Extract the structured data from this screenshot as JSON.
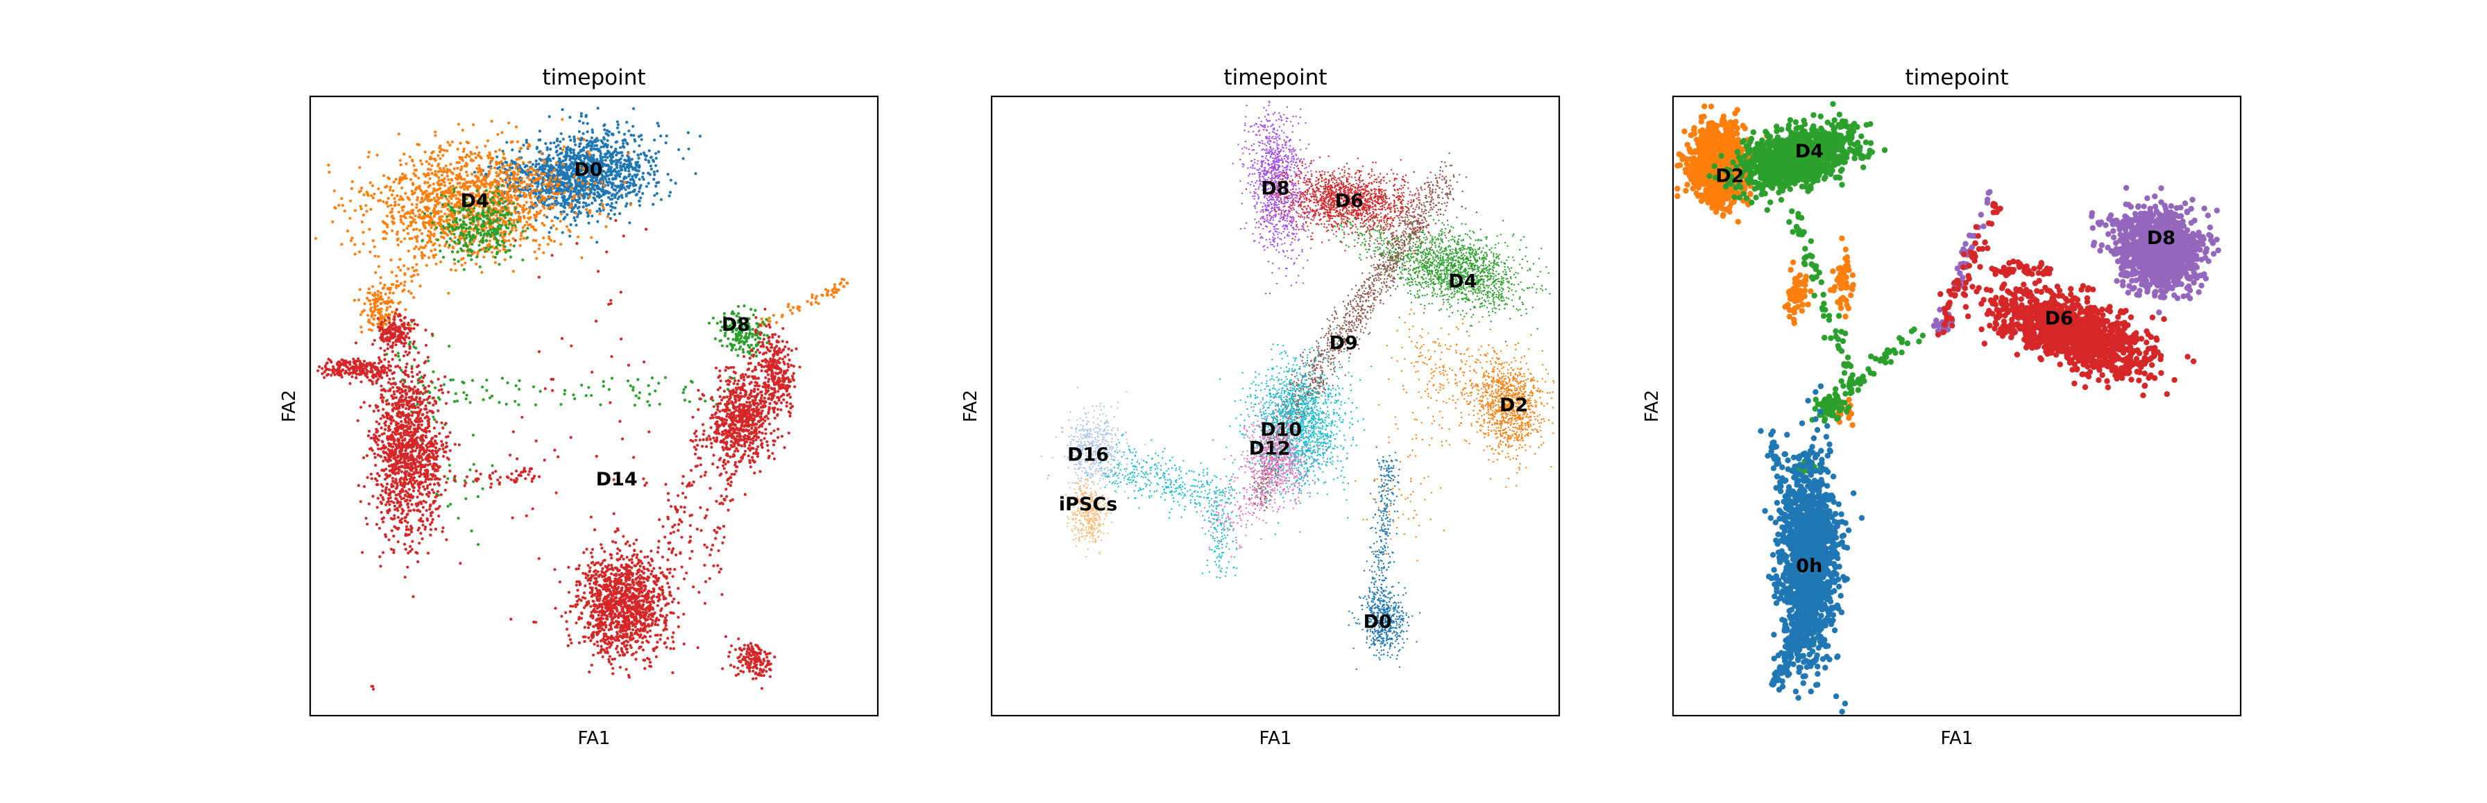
{
  "chart_data": [
    {
      "type": "scatter",
      "title": "timepoint",
      "xlabel": "FA1",
      "ylabel": "FA2",
      "xlim": [
        0,
        100
      ],
      "ylim": [
        0,
        100
      ],
      "legend": "on-data",
      "clusters": [
        {
          "name": "D0",
          "color": "#1f77b4",
          "label_at": [
            49,
            88
          ]
        },
        {
          "name": "D4",
          "color": "#ff7f0e",
          "label_at": [
            29,
            83
          ]
        },
        {
          "name": "D8",
          "color": "#2ca02c",
          "label_at": [
            75,
            63
          ]
        },
        {
          "name": "D14",
          "color": "#d62728",
          "label_at": [
            54,
            38
          ]
        }
      ]
    },
    {
      "type": "scatter",
      "title": "timepoint",
      "xlabel": "FA1",
      "ylabel": "FA2",
      "xlim": [
        0,
        100
      ],
      "ylim": [
        0,
        100
      ],
      "legend": "on-data",
      "clusters": [
        {
          "name": "D8",
          "color": "#a04cf0",
          "label_at": [
            50,
            85
          ]
        },
        {
          "name": "D6",
          "color": "#d62728",
          "label_at": [
            63,
            83
          ]
        },
        {
          "name": "D4",
          "color": "#2ca02c",
          "label_at": [
            83,
            70
          ]
        },
        {
          "name": "D9",
          "color": "#8c564b",
          "label_at": [
            62,
            60
          ]
        },
        {
          "name": "D2",
          "color": "#ff7f0e",
          "label_at": [
            92,
            50
          ]
        },
        {
          "name": "D0",
          "color": "#1f77b4",
          "label_at": [
            68,
            15
          ]
        },
        {
          "name": "D10",
          "color": "#17becf",
          "label_at": [
            51,
            46
          ]
        },
        {
          "name": "D12",
          "color": "#e377c2",
          "label_at": [
            49,
            43
          ]
        },
        {
          "name": "D16",
          "color": "#aec7e8",
          "label_at": [
            17,
            42
          ]
        },
        {
          "name": "iPSCs",
          "color": "#ffbb78",
          "label_at": [
            17,
            34
          ]
        }
      ]
    },
    {
      "type": "scatter",
      "title": "timepoint",
      "xlabel": "FA1",
      "ylabel": "FA2",
      "xlim": [
        0,
        100
      ],
      "ylim": [
        0,
        100
      ],
      "legend": "on-data",
      "clusters": [
        {
          "name": "D2",
          "color": "#ff7f0e",
          "label_at": [
            10,
            87
          ]
        },
        {
          "name": "D4",
          "color": "#2ca02c",
          "label_at": [
            24,
            91
          ]
        },
        {
          "name": "D8",
          "color": "#9467bd",
          "label_at": [
            86,
            77
          ]
        },
        {
          "name": "D6",
          "color": "#d62728",
          "label_at": [
            68,
            64
          ]
        },
        {
          "name": "0h",
          "color": "#1f77b4",
          "label_at": [
            24,
            24
          ]
        }
      ]
    }
  ]
}
